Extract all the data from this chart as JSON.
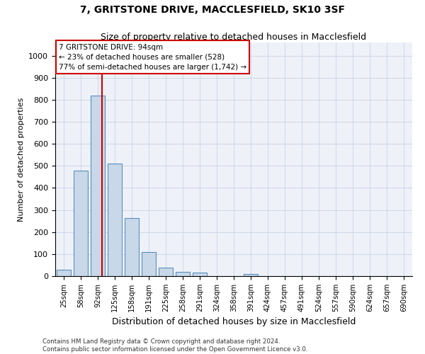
{
  "title1": "7, GRITSTONE DRIVE, MACCLESFIELD, SK10 3SF",
  "title2": "Size of property relative to detached houses in Macclesfield",
  "xlabel": "Distribution of detached houses by size in Macclesfield",
  "ylabel": "Number of detached properties",
  "bin_labels": [
    "25sqm",
    "58sqm",
    "92sqm",
    "125sqm",
    "158sqm",
    "191sqm",
    "225sqm",
    "258sqm",
    "291sqm",
    "324sqm",
    "358sqm",
    "391sqm",
    "424sqm",
    "457sqm",
    "491sqm",
    "524sqm",
    "557sqm",
    "590sqm",
    "624sqm",
    "657sqm",
    "690sqm"
  ],
  "bin_values": [
    30,
    480,
    820,
    510,
    265,
    110,
    40,
    20,
    15,
    0,
    0,
    10,
    0,
    0,
    0,
    0,
    0,
    0,
    0,
    0,
    0
  ],
  "bar_color": "#c8d8e8",
  "bar_edge_color": "#5a8fc0",
  "property_line_label": "7 GRITSTONE DRIVE: 94sqm",
  "annotation_line1": "← 23% of detached houses are smaller (528)",
  "annotation_line2": "77% of semi-detached houses are larger (1,742) →",
  "annotation_box_color": "#ffffff",
  "annotation_box_edge": "#cc0000",
  "vline_color": "#cc0000",
  "vline_x": 2.27,
  "ylim": [
    0,
    1060
  ],
  "yticks": [
    0,
    100,
    200,
    300,
    400,
    500,
    600,
    700,
    800,
    900,
    1000
  ],
  "grid_color": "#d0d8e8",
  "background_color": "#eef2f8",
  "footer1": "Contains HM Land Registry data © Crown copyright and database right 2024.",
  "footer2": "Contains public sector information licensed under the Open Government Licence v3.0."
}
